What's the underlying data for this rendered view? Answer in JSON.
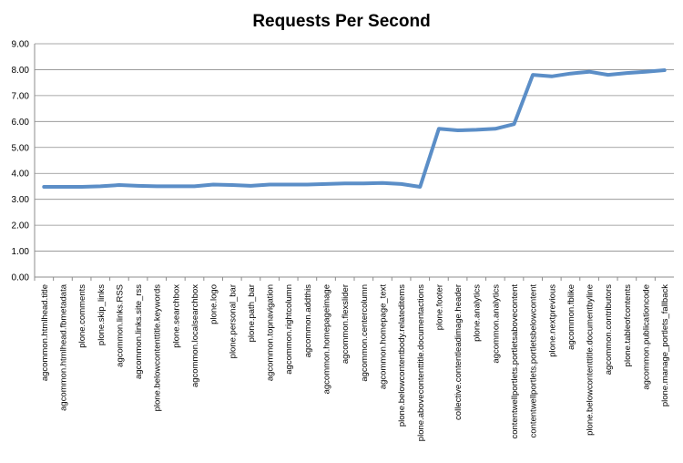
{
  "chart_data": {
    "type": "line",
    "title": "Requests Per Second",
    "xlabel": "",
    "ylabel": "",
    "ylim": [
      0,
      9
    ],
    "y_tick_labels": [
      "0.00",
      "1.00",
      "2.00",
      "3.00",
      "4.00",
      "5.00",
      "6.00",
      "7.00",
      "8.00",
      "9.00"
    ],
    "grid": true,
    "legend": "none",
    "line_color": "#5b8ec7",
    "categories": [
      "agcommon.htmlhead.title",
      "agcommon.htmlhead.fbmetadata",
      "plone.comments",
      "plone.skip_links",
      "agcommon.links.RSS",
      "agcommon.links.site_rss",
      "plone.belowcontenttitle.keywords",
      "plone.searchbox",
      "agcommon.localsearchbox",
      "plone.logo",
      "plone.personal_bar",
      "plone.path_bar",
      "agcommon.topnavigation",
      "agcommon.rightcolumn",
      "agcommon.addthis",
      "agcommon.homepageimage",
      "agcommon.flexslider",
      "agcommon.centercolumn",
      "agcommon.homepage_text",
      "plone.belowcontentbody.relateditems",
      "plone.abovecontenttitle.documentactions",
      "plone.footer",
      "collective.contentleadimage.header",
      "plone.analytics",
      "agcommon.analytics",
      "contentwellportlets.portletsabovecontent",
      "contentwellportlets.portletsbelowcontent",
      "plone.nextprevious",
      "agcommon.fblike",
      "plone.belowcontenttitle.documentbyline",
      "agcommon.contributors",
      "plone.tableofcontents",
      "agcommon.publicationcode",
      "plone.manage_portlets_fallback"
    ],
    "series": [
      {
        "values": [
          3.48,
          3.48,
          3.48,
          3.5,
          3.55,
          3.52,
          3.5,
          3.5,
          3.5,
          3.57,
          3.55,
          3.52,
          3.57,
          3.57,
          3.57,
          3.59,
          3.61,
          3.61,
          3.63,
          3.59,
          3.48,
          5.72,
          5.66,
          5.68,
          5.72,
          5.9,
          7.8,
          7.74,
          7.85,
          7.92,
          7.8,
          7.87,
          7.92,
          7.98
        ]
      }
    ]
  }
}
